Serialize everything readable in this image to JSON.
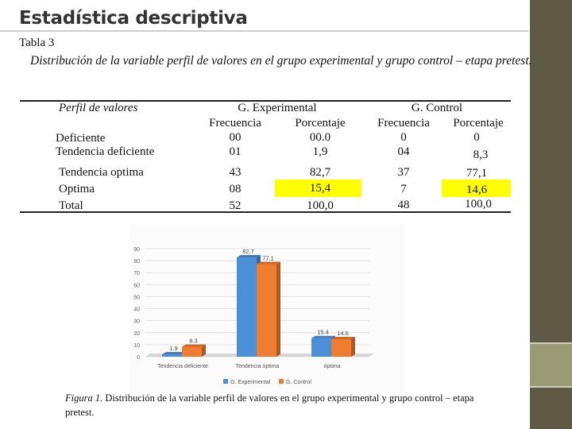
{
  "slide_title": "Estadística descriptiva",
  "table_label": "Tabla 3",
  "table_caption": "Distribución de la variable perfil de valores en el grupo  experimental  y grupo control – etapa pretest.",
  "table": {
    "col_perfil": "Perfil de valores",
    "group_exp": "G. Experimental",
    "group_ctrl": "G. Control",
    "sub_freq": "Frecuencia",
    "sub_pct": "Porcentaje",
    "rows": [
      {
        "label": "Deficiente",
        "exp_f": "00",
        "exp_p": "00.0",
        "ctl_f": "0",
        "ctl_p": "0"
      },
      {
        "label": "Tendencia deficiente",
        "exp_f": "01",
        "exp_p": "1,9",
        "ctl_f": "04",
        "ctl_p": "8,3"
      },
      {
        "label": "Tendencia optima",
        "exp_f": "43",
        "exp_p": "82,7",
        "ctl_f": "37",
        "ctl_p": "77,1"
      },
      {
        "label": "Optima",
        "exp_f": "08",
        "exp_p": "15,4",
        "ctl_f": "7",
        "ctl_p": "14,6"
      },
      {
        "label": "Total",
        "exp_f": "52",
        "exp_p": "100,0",
        "ctl_f": "48",
        "ctl_p": "100,0"
      }
    ]
  },
  "chart_data": {
    "type": "bar",
    "categories": [
      "Tendencia deficiente",
      "Tendencia óptima",
      "óptima"
    ],
    "series": [
      {
        "name": "G. Experimental",
        "values": [
          1.9,
          82.7,
          15.4
        ],
        "color": "#4a90d9"
      },
      {
        "name": "G. Control",
        "values": [
          8.3,
          77.1,
          14.6
        ],
        "color": "#ee7d31"
      }
    ],
    "data_labels": [
      [
        "1.9",
        "82.7",
        "15.4"
      ],
      [
        "8.3",
        "77.1",
        "14.6"
      ]
    ],
    "yticks": [
      "0",
      "10",
      "20",
      "30",
      "40",
      "50",
      "60",
      "70",
      "80",
      "90"
    ],
    "ylim": [
      0,
      90
    ],
    "grid": true,
    "legend": "bottom",
    "title": "",
    "xlabel": "",
    "ylabel": ""
  },
  "figure_caption": {
    "label": "Figura 1.",
    "text": " Distribución de la variable perfil de valores en el grupo  experimental  y grupo control – etapa pretest."
  },
  "colors": {
    "sidebar_dark": "#5f5a45",
    "sidebar_light": "#9a9b76",
    "highlight": "#ffff00"
  }
}
